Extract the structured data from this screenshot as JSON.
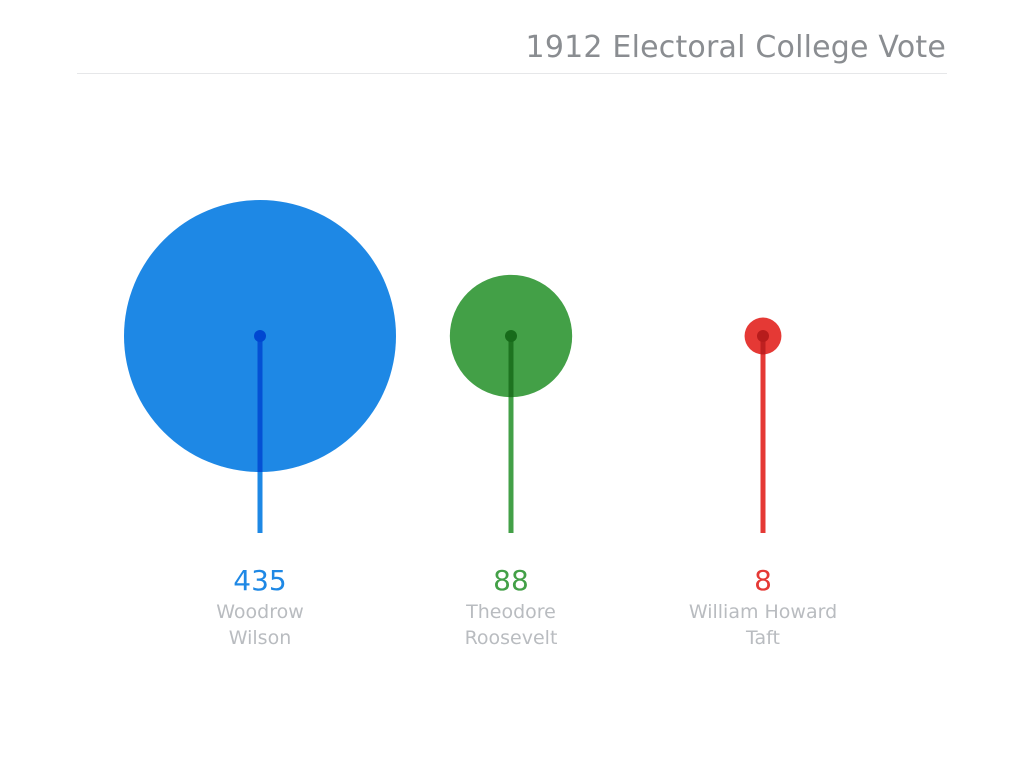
{
  "chart_data": {
    "type": "bubble-stem",
    "title": "1912 Electoral College Vote",
    "categories": [
      {
        "name_lines": [
          "Woodrow",
          "Wilson"
        ],
        "value_label": "435",
        "value": 435,
        "color": "#1e88e5",
        "stem_color": "#0047d1"
      },
      {
        "name_lines": [
          "Theodore",
          "Roosevelt"
        ],
        "value_label": "88",
        "value": 88,
        "color": "#43a047",
        "stem_color": "#176b1a"
      },
      {
        "name_lines": [
          "William Howard",
          "Taft"
        ],
        "value_label": "8",
        "value": 8,
        "color": "#e53935",
        "stem_color": "#b71c1c"
      }
    ]
  }
}
